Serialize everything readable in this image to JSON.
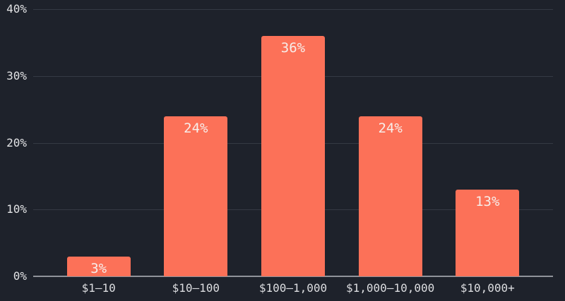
{
  "chart_data": {
    "type": "bar",
    "title": "",
    "xlabel": "",
    "ylabel": "",
    "categories": [
      "$1–10",
      "$10–100",
      "$100–1,000",
      "$1,000–10,000",
      "$10,000+"
    ],
    "values": [
      3,
      24,
      36,
      24,
      13
    ],
    "value_labels": [
      "3%",
      "24%",
      "36%",
      "24%",
      "13%"
    ],
    "yticks": [
      "40%",
      "30%",
      "20%",
      "10%",
      "0%"
    ],
    "ylim": [
      0,
      40
    ],
    "grid": true,
    "legend_position": "none",
    "colors": {
      "background": "#1e222b",
      "bar": "#fc7158",
      "gridline": "#353a44",
      "baseline": "#90939a",
      "axis_text": "#e2e3e5",
      "x_axis_text": "#dcdde0",
      "bar_label_text": "#f7eeea"
    }
  }
}
